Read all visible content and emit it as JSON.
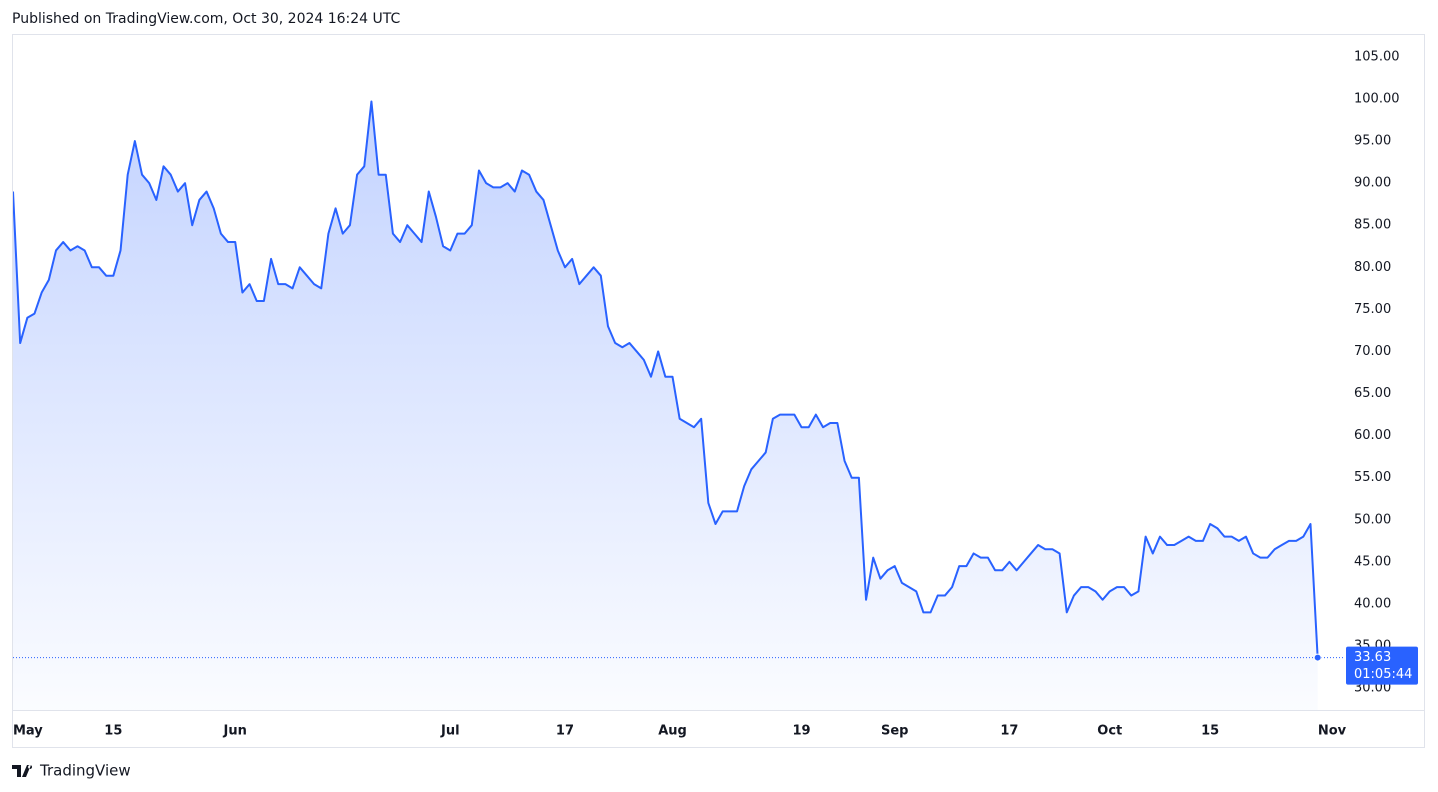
{
  "header": "Published on TradingView.com, Oct 30, 2024 16:24 UTC",
  "footer": "TradingView",
  "chart_data": {
    "type": "area",
    "color": "#2962ff",
    "grid": false,
    "countdown": "01:05:44",
    "categories": [
      "May",
      null,
      null,
      null,
      null,
      null,
      null,
      null,
      null,
      null,
      null,
      null,
      null,
      null,
      "15",
      null,
      null,
      null,
      null,
      null,
      null,
      null,
      null,
      null,
      null,
      null,
      null,
      null,
      null,
      null,
      null,
      "Jun",
      null,
      null,
      null,
      null,
      null,
      null,
      null,
      null,
      null,
      null,
      null,
      null,
      null,
      null,
      null,
      null,
      null,
      null,
      null,
      null,
      null,
      null,
      null,
      null,
      null,
      null,
      null,
      null,
      null,
      "Jul",
      null,
      null,
      null,
      null,
      null,
      null,
      null,
      null,
      null,
      null,
      null,
      null,
      null,
      null,
      null,
      "17",
      null,
      null,
      null,
      null,
      null,
      null,
      null,
      null,
      null,
      null,
      null,
      null,
      null,
      null,
      "Aug",
      null,
      null,
      null,
      null,
      null,
      null,
      null,
      null,
      null,
      null,
      null,
      null,
      null,
      null,
      null,
      null,
      null,
      "19",
      null,
      null,
      null,
      null,
      null,
      null,
      null,
      null,
      null,
      null,
      null,
      null,
      "Sep",
      null,
      null,
      null,
      null,
      null,
      null,
      null,
      null,
      null,
      null,
      null,
      null,
      null,
      null,
      null,
      "17",
      null,
      null,
      null,
      null,
      null,
      null,
      null,
      null,
      null,
      null,
      null,
      null,
      null,
      "Oct",
      null,
      null,
      null,
      null,
      null,
      null,
      null,
      null,
      null,
      null,
      null,
      null,
      null,
      "15",
      null,
      null,
      null,
      null,
      null,
      null,
      null,
      null,
      null,
      null,
      null,
      null,
      null,
      null,
      null,
      null,
      "Nov"
    ],
    "values": [
      89,
      71,
      74,
      74.5,
      77,
      78.5,
      82,
      83,
      82,
      82.5,
      82,
      80,
      80,
      79,
      79,
      82,
      91,
      95,
      91,
      90,
      88,
      92,
      91,
      89,
      90,
      85,
      88,
      89,
      87,
      84,
      83,
      83,
      77,
      78,
      76,
      76,
      81,
      78,
      78,
      77.5,
      80,
      79,
      78,
      77.5,
      84,
      87,
      84,
      85,
      91,
      92,
      99.7,
      91,
      91,
      84,
      83,
      85,
      84,
      83,
      89,
      86,
      82.5,
      82,
      84,
      84,
      85,
      91.5,
      90,
      89.5,
      89.5,
      90,
      89,
      91.5,
      91,
      89,
      88,
      85,
      82,
      80,
      81,
      78,
      79,
      80,
      79,
      73,
      71,
      70.5,
      71,
      70,
      69,
      67,
      70,
      67,
      67,
      62,
      61.5,
      61,
      62,
      52,
      49.5,
      51,
      51,
      51,
      54,
      56,
      57,
      58,
      62,
      62.5,
      62.5,
      62.5,
      61,
      61,
      62.5,
      61,
      61.5,
      61.5,
      57,
      55,
      55,
      40.5,
      45.5,
      43,
      44,
      44.5,
      42.5,
      42,
      41.5,
      39,
      39,
      41,
      41,
      42,
      44.5,
      44.5,
      46,
      45.5,
      45.5,
      44,
      44,
      45,
      44,
      45,
      46,
      47,
      46.5,
      46.5,
      46,
      39,
      41,
      42,
      42,
      41.5,
      40.5,
      41.5,
      42,
      42,
      41,
      41.5,
      48,
      46,
      48,
      47,
      47,
      47.5,
      48,
      47.5,
      47.5,
      49.5,
      49,
      48,
      48,
      47.5,
      48,
      46,
      45.5,
      45.5,
      46.5,
      47,
      47.5,
      47.5,
      48,
      49.5,
      33.63,
      null,
      null
    ],
    "ylim": [
      27.4,
      107.6
    ],
    "yticks": [
      {
        "value": 30,
        "label": "30.00"
      },
      {
        "value": 35,
        "label": "35.00"
      },
      {
        "value": 40,
        "label": "40.00"
      },
      {
        "value": 45,
        "label": "45.00"
      },
      {
        "value": 50,
        "label": "50.00"
      },
      {
        "value": 55,
        "label": "55.00"
      },
      {
        "value": 60,
        "label": "60.00"
      },
      {
        "value": 65,
        "label": "65.00"
      },
      {
        "value": 70,
        "label": "70.00"
      },
      {
        "value": 75,
        "label": "75.00"
      },
      {
        "value": 80,
        "label": "80.00"
      },
      {
        "value": 85,
        "label": "85.00"
      },
      {
        "value": 90,
        "label": "90.00"
      },
      {
        "value": 95,
        "label": "95.00"
      },
      {
        "value": 100,
        "label": "100.00"
      },
      {
        "value": 105,
        "label": "105.00"
      }
    ]
  }
}
